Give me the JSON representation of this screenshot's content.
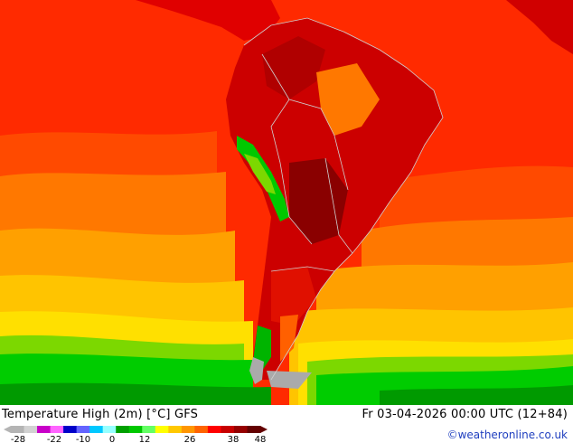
{
  "map": {
    "title": "Temperature High (2m) [°C] GFS",
    "valid_time": "Fr 03-04-2026 00:00 UTC (12+84)",
    "credit": "©weatheronline.co.uk",
    "colors": {
      "land_lowest": "#9a0000",
      "land_hot": "#cc0000",
      "ocean_warm": "#ff2000",
      "ocean_orange_red": "#ff5000",
      "ocean_orange": "#ff8c00",
      "ocean_amber": "#ffb000",
      "ocean_yellow": "#ffd800",
      "cool_green": "#00cc00",
      "cold_green": "#009900",
      "snow_grey": "#aaaaaa",
      "border_line": "#cfcfcf"
    }
  },
  "legend": {
    "ticks": [
      "-28",
      "-22",
      "-10",
      "0",
      "12",
      "26",
      "38",
      "48"
    ],
    "colors": [
      "#b4b4b4",
      "#d2d2d2",
      "#c800c8",
      "#ff64ff",
      "#0000c8",
      "#6464ff",
      "#00c8ff",
      "#96ffff",
      "#00a000",
      "#00c800",
      "#64ff64",
      "#ffff00",
      "#ffc800",
      "#ff9600",
      "#ff6400",
      "#ff0000",
      "#c80000",
      "#960000",
      "#640000"
    ]
  }
}
